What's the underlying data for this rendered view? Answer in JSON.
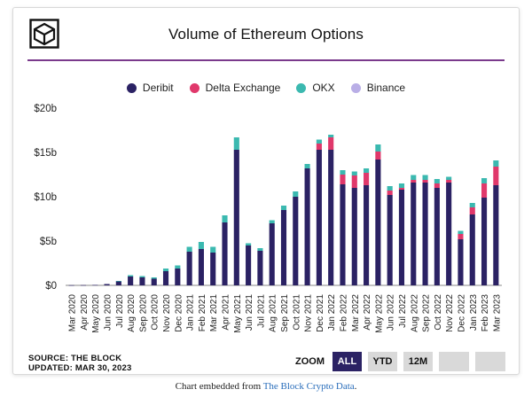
{
  "header": {
    "title": "Volume of Ethereum Options",
    "logo_icon": "the-block-cube-logo"
  },
  "source": {
    "line1": "SOURCE: THE BLOCK",
    "line2": "UPDATED: MAR 30, 2023"
  },
  "zoom": {
    "label": "ZOOM",
    "buttons": [
      "ALL",
      "YTD",
      "12M",
      "",
      ""
    ],
    "active": "ALL"
  },
  "footer": {
    "prefix": "Chart embedded from ",
    "link": "The Block Crypto Data",
    "suffix": "."
  },
  "colors": {
    "deribit": "#2b2264",
    "delta": "#e0386b",
    "okx": "#3bb9b0",
    "binance": "#b9aee6",
    "rule": "#7a3a8c"
  },
  "chart_data": {
    "type": "bar",
    "stacked": true,
    "title": "Volume of Ethereum Options",
    "ylabel": "",
    "xlabel": "",
    "ylim": [
      0,
      20
    ],
    "yticks": [
      0,
      5,
      10,
      15,
      20
    ],
    "ytick_labels": [
      "$0",
      "$5b",
      "$10b",
      "$15b",
      "$20b"
    ],
    "legend_position": "top-center",
    "categories": [
      "Mar 2020",
      "Apr 2020",
      "May 2020",
      "Jun 2020",
      "Jul 2020",
      "Aug 2020",
      "Sep 2020",
      "Oct 2020",
      "Nov 2020",
      "Dec 2020",
      "Jan 2021",
      "Feb 2021",
      "Mar 2021",
      "Apr 2021",
      "May 2021",
      "Jun 2021",
      "Jul 2021",
      "Aug 2021",
      "Sep 2021",
      "Oct 2021",
      "Nov 2021",
      "Dec 2021",
      "Jan 2022",
      "Feb 2022",
      "Mar 2022",
      "Apr 2022",
      "May 2022",
      "Jun 2022",
      "Jul 2022",
      "Aug 2022",
      "Sep 2022",
      "Oct 2022",
      "Nov 2022",
      "Dec 2022",
      "Jan 2023",
      "Feb 2023",
      "Mar 2023"
    ],
    "series": [
      {
        "name": "Deribit",
        "color": "#2b2264",
        "values": [
          0.02,
          0.03,
          0.05,
          0.15,
          0.45,
          1.0,
          0.9,
          0.75,
          1.6,
          1.9,
          3.8,
          4.1,
          3.7,
          7.1,
          15.3,
          4.5,
          3.9,
          7.0,
          8.5,
          10.0,
          13.2,
          15.3,
          15.3,
          11.4,
          11.0,
          11.3,
          14.2,
          10.2,
          10.8,
          11.6,
          11.6,
          11.0,
          11.6,
          5.2,
          8.0,
          9.9,
          11.3
        ]
      },
      {
        "name": "Delta Exchange",
        "color": "#e0386b",
        "values": [
          0,
          0,
          0,
          0,
          0,
          0,
          0,
          0,
          0,
          0,
          0,
          0,
          0,
          0,
          0,
          0,
          0,
          0,
          0,
          0,
          0,
          0.7,
          1.4,
          1.1,
          1.4,
          1.4,
          0.9,
          0.5,
          0.2,
          0.3,
          0.3,
          0.5,
          0.3,
          0.6,
          0.8,
          1.6,
          2.1
        ]
      },
      {
        "name": "OKX",
        "color": "#3bb9b0",
        "values": [
          0,
          0,
          0,
          0,
          0.05,
          0.15,
          0.15,
          0.15,
          0.3,
          0.35,
          0.55,
          0.8,
          0.65,
          0.8,
          1.4,
          0.25,
          0.3,
          0.35,
          0.5,
          0.6,
          0.5,
          0.45,
          0.3,
          0.5,
          0.45,
          0.5,
          0.8,
          0.5,
          0.5,
          0.55,
          0.55,
          0.5,
          0.35,
          0.35,
          0.5,
          0.6,
          0.7
        ]
      },
      {
        "name": "Binance",
        "color": "#b9aee6",
        "values": [
          0,
          0,
          0,
          0,
          0,
          0,
          0,
          0,
          0,
          0,
          0,
          0,
          0,
          0,
          0,
          0,
          0,
          0,
          0,
          0,
          0,
          0,
          0,
          0,
          0,
          0,
          0,
          0,
          0,
          0,
          0,
          0,
          0,
          0,
          0,
          0,
          0
        ]
      }
    ]
  }
}
